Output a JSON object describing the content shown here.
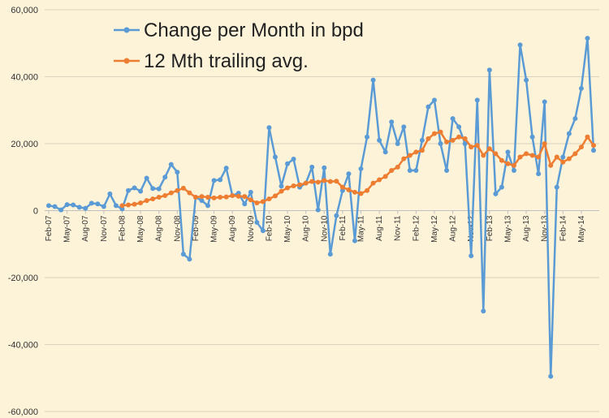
{
  "chart_data": {
    "type": "line",
    "y_ticks": [
      -60000,
      -40000,
      -20000,
      0,
      20000,
      40000,
      60000
    ],
    "y_tick_labels": [
      "-60,000",
      "-40,000",
      "-20,000",
      "0",
      "20,000",
      "40,000",
      "60,000"
    ],
    "ylim": [
      -60000,
      60000
    ],
    "x_tick_labels": [
      "Feb-07",
      "May-07",
      "Aug-07",
      "Nov-07",
      "Feb-08",
      "May-08",
      "Aug-08",
      "Nov-08",
      "Feb-09",
      "May-09",
      "Aug-09",
      "Nov-09",
      "Feb-10",
      "May-10",
      "Aug-10",
      "Nov-10",
      "Feb-11",
      "May-11",
      "Aug-11",
      "Nov-11",
      "Feb-12",
      "May-12",
      "Aug-12",
      "Nov-12",
      "Feb-13",
      "May-13",
      "Aug-13",
      "Nov-13",
      "Feb-14",
      "May-14"
    ],
    "grid": "horizontal",
    "legend_position": "top-left",
    "series": [
      {
        "name": "Change per Month in bpd",
        "color": "#5b9bd5",
        "values": [
          1500,
          1200,
          200,
          1800,
          1700,
          1000,
          700,
          2200,
          2000,
          1200,
          5000,
          1500,
          500,
          6000,
          6800,
          5800,
          9700,
          6600,
          6500,
          10000,
          13800,
          11500,
          -13000,
          -14500,
          4000,
          3000,
          1500,
          9000,
          9200,
          12700,
          4500,
          5200,
          2000,
          5500,
          -3500,
          -6000,
          24800,
          16000,
          7300,
          14000,
          15400,
          7000,
          8200,
          13000,
          200,
          12800,
          -13000,
          -1500,
          6000,
          11000,
          -9000,
          12500,
          22000,
          39000,
          21000,
          17500,
          26500,
          20000,
          25000,
          12000,
          12000,
          21000,
          31000,
          33000,
          20000,
          12000,
          27500,
          25000,
          20000,
          -13500,
          33000,
          -30000,
          42000,
          5000,
          7000,
          17500,
          12000,
          49500,
          39000,
          22000,
          11000,
          32500,
          -49500,
          7000,
          16000,
          23000,
          27500,
          36500,
          51500,
          18000
        ]
      },
      {
        "name": "12 Mth trailing avg.",
        "color": "#ed7d31",
        "values": [
          null,
          null,
          null,
          null,
          null,
          null,
          null,
          null,
          null,
          null,
          null,
          null,
          1500,
          1700,
          1900,
          2300,
          3000,
          3500,
          4000,
          4500,
          5300,
          6000,
          6700,
          5300,
          4000,
          4200,
          4000,
          3800,
          4000,
          4100,
          4500,
          4300,
          4200,
          3200,
          2300,
          2700,
          3500,
          4400,
          5800,
          6800,
          7400,
          7700,
          8200,
          8700,
          8500,
          9000,
          8700,
          8800,
          7000,
          6200,
          5500,
          5100,
          6000,
          8200,
          9200,
          10200,
          12000,
          13000,
          15500,
          16500,
          17500,
          18000,
          21500,
          23000,
          23500,
          20500,
          21000,
          22000,
          21500,
          19000,
          19500,
          16500,
          18500,
          17000,
          15000,
          14000,
          13500,
          16000,
          17000,
          16500,
          16000,
          20000,
          13500,
          16000,
          14500,
          15500,
          17000,
          19000,
          22000,
          19500
        ]
      }
    ]
  }
}
